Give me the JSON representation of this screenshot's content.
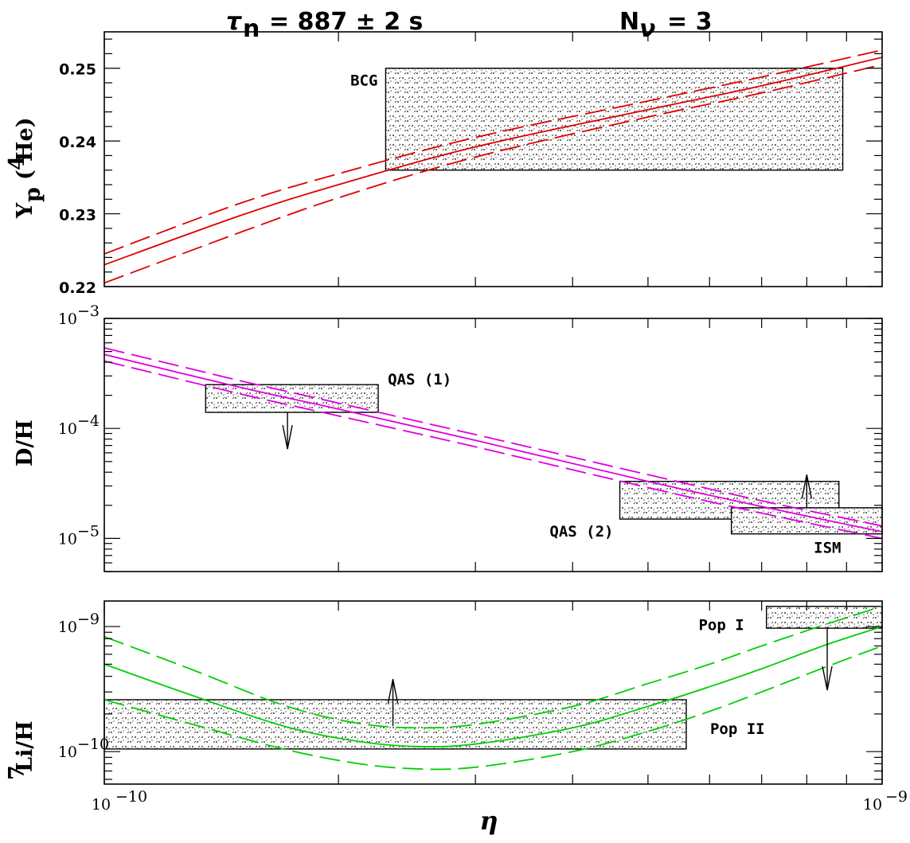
{
  "header": {
    "tau_label": "τ",
    "tau_sub": "n",
    "tau_value": "= 887 ± 2 s",
    "nnu_label": "N",
    "nnu_sub": "ν",
    "nnu_value": "= 3"
  },
  "chart_data": [
    {
      "type": "line",
      "panel": "helium",
      "ylabel": "Y_p (⁴He)",
      "ylabel_main": "Y",
      "ylabel_sub": "p",
      "ylabel_paren": "(",
      "ylabel_sup": "4",
      "ylabel_rest": "He)",
      "xscale": "log",
      "xlim": [
        1e-10,
        1e-09
      ],
      "ylim": [
        0.22,
        0.255
      ],
      "yscale": "linear",
      "yticks": [
        0.22,
        0.23,
        0.24,
        0.25
      ],
      "ytick_labels": [
        "0.22",
        "0.23",
        "0.24",
        "0.25"
      ],
      "curve_color": "#e00000",
      "series": [
        {
          "style": "dashed",
          "x": [
            1e-10,
            1.5e-10,
            2e-10,
            3e-10,
            5e-10,
            7e-10,
            1e-09
          ],
          "y": [
            0.2245,
            0.2315,
            0.2355,
            0.2405,
            0.2455,
            0.2488,
            0.2525
          ]
        },
        {
          "style": "solid",
          "x": [
            1e-10,
            1.5e-10,
            2e-10,
            3e-10,
            5e-10,
            7e-10,
            1e-09
          ],
          "y": [
            0.223,
            0.2298,
            0.234,
            0.2392,
            0.2443,
            0.2476,
            0.2515
          ]
        },
        {
          "style": "dashed",
          "x": [
            1e-10,
            1.5e-10,
            2e-10,
            3e-10,
            5e-10,
            7e-10,
            1e-09
          ],
          "y": [
            0.2205,
            0.2275,
            0.2322,
            0.2378,
            0.2433,
            0.2466,
            0.2505
          ]
        }
      ],
      "boxes": [
        {
          "label": "BCG",
          "x": [
            2.3e-10,
            8.9e-10
          ],
          "y": [
            0.236,
            0.25
          ]
        }
      ]
    },
    {
      "type": "line",
      "panel": "deuterium",
      "ylabel": "D/H",
      "xscale": "log",
      "xlim": [
        1e-10,
        1e-09
      ],
      "yscale": "log",
      "ylim": [
        5e-06,
        0.001
      ],
      "yticks": [
        1e-05,
        0.0001,
        0.001
      ],
      "ytick_base": [
        "10",
        "10",
        "10"
      ],
      "ytick_exp": [
        "−5",
        "−4",
        "−3"
      ],
      "curve_color": "#e000e0",
      "series": [
        {
          "style": "dashed",
          "x": [
            1e-10,
            1.5e-10,
            2e-10,
            3e-10,
            5e-10,
            7e-10,
            1e-09
          ],
          "y": [
            0.00054,
            0.00027,
            0.00017,
            8.8e-05,
            3.8e-05,
            2.2e-05,
            1.3e-05
          ]
        },
        {
          "style": "solid",
          "x": [
            1e-10,
            1.5e-10,
            2e-10,
            3e-10,
            5e-10,
            7e-10,
            1e-09
          ],
          "y": [
            0.00047,
            0.000235,
            0.00015,
            7.8e-05,
            3.3e-05,
            1.95e-05,
            1.15e-05
          ]
        },
        {
          "style": "dashed",
          "x": [
            1e-10,
            1.5e-10,
            2e-10,
            3e-10,
            5e-10,
            7e-10,
            1e-09
          ],
          "y": [
            0.00041,
            0.000205,
            0.00013,
            6.8e-05,
            2.9e-05,
            1.7e-05,
            1e-05
          ]
        }
      ],
      "boxes": [
        {
          "label": "QAS (1)",
          "x": [
            1.35e-10,
            2.25e-10
          ],
          "y": [
            0.00014,
            0.00025
          ],
          "arrow": "down",
          "arrow_x": 1.72e-10,
          "arrow_to": 6.5e-05
        },
        {
          "label": "QAS (2)",
          "x": [
            4.6e-10,
            8.8e-10
          ],
          "y": [
            1.5e-05,
            3.3e-05
          ]
        },
        {
          "label": "ISM",
          "x": [
            6.4e-10,
            1e-09
          ],
          "y": [
            1.1e-05,
            1.9e-05
          ],
          "arrow": "up",
          "arrow_x": 8e-10,
          "arrow_from": 1.9e-05,
          "arrow_to": 3.8e-05
        }
      ]
    },
    {
      "type": "line",
      "panel": "lithium",
      "ylabel": "⁷Li/H",
      "ylabel_sup": "7",
      "ylabel_rest": "Li/H",
      "xscale": "log",
      "xlim": [
        1e-10,
        1e-09
      ],
      "xticks": [
        1e-10,
        1e-09
      ],
      "xtick_base": [
        "10",
        "10"
      ],
      "xtick_exp": [
        "−10",
        "−9"
      ],
      "xlabel": "η",
      "yscale": "log",
      "ylim": [
        5.5e-11,
        1.6e-09
      ],
      "yticks": [
        1e-10,
        1e-09
      ],
      "ytick_base": [
        "10",
        "10"
      ],
      "ytick_exp": [
        "−10",
        "−9"
      ],
      "curve_color": "#00d000",
      "series": [
        {
          "style": "dashed",
          "x": [
            1e-10,
            1.3e-10,
            1.7e-10,
            2.1e-10,
            2.5e-10,
            3e-10,
            4e-10,
            5e-10,
            6e-10,
            7e-10,
            8.5e-10,
            1e-09
          ],
          "y": [
            8.3e-10,
            4.5e-10,
            2.35e-10,
            1.7e-10,
            1.55e-10,
            1.65e-10,
            2.3e-10,
            3.5e-10,
            5e-10,
            7e-10,
            1.05e-09,
            1.45e-09
          ]
        },
        {
          "style": "solid",
          "x": [
            1e-10,
            1.3e-10,
            1.7e-10,
            2.1e-10,
            2.5e-10,
            3e-10,
            4e-10,
            5e-10,
            6e-10,
            7e-10,
            8.5e-10,
            1e-09
          ],
          "y": [
            5e-10,
            2.8e-10,
            1.6e-10,
            1.22e-10,
            1.1e-10,
            1.15e-10,
            1.55e-10,
            2.3e-10,
            3.3e-10,
            4.6e-10,
            7.2e-10,
            1e-09
          ]
        },
        {
          "style": "dashed",
          "x": [
            1e-10,
            1.3e-10,
            1.7e-10,
            2.1e-10,
            2.5e-10,
            3e-10,
            4e-10,
            5e-10,
            6e-10,
            7e-10,
            8.5e-10,
            1e-09
          ],
          "y": [
            2.6e-10,
            1.65e-10,
            1.05e-10,
            8.1e-11,
            7.3e-11,
            7.5e-11,
            1e-10,
            1.45e-10,
            2.1e-10,
            3e-10,
            4.8e-10,
            7e-10
          ]
        }
      ],
      "boxes": [
        {
          "label": "Pop II",
          "x": [
            1e-10,
            5.6e-10
          ],
          "y": [
            1.05e-10,
            2.6e-10
          ],
          "arrow": "up",
          "arrow_x": 2.35e-10,
          "arrow_from": 1.6e-10,
          "arrow_to": 3.8e-10
        },
        {
          "label": "Pop I",
          "x": [
            7.1e-10,
            1e-09
          ],
          "y": [
            9.7e-10,
            1.45e-09
          ],
          "arrow": "down",
          "arrow_x": 8.5e-10,
          "arrow_to": 3.1e-10
        }
      ]
    }
  ]
}
